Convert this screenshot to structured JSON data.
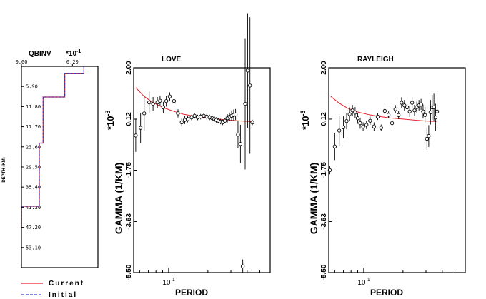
{
  "chart_data": [
    {
      "type": "line",
      "title": "QBINV",
      "multiplier": "*10",
      "multiplier_exp": "-1",
      "xlabel": "",
      "ylabel": "DEPTH (KM)",
      "xlim": [
        0.0,
        0.3
      ],
      "ylim": [
        0.0,
        59.0
      ],
      "x_reversed_y": true,
      "x_ticks": [
        "0.00",
        "0.20"
      ],
      "x_tick_values": [
        0.0,
        0.2
      ],
      "y_ticks": [
        "5.90",
        "11.80",
        "17.70",
        "23.60",
        "29.50",
        "35.40",
        "41.30",
        "47.20",
        "53.10"
      ],
      "y_tick_values": [
        5.9,
        11.8,
        17.7,
        23.6,
        29.5,
        35.4,
        41.3,
        47.2,
        53.1
      ],
      "series": [
        {
          "name": "Current",
          "color": "#e8202a",
          "depth": [
            0,
            2.0,
            2.0,
            9.0,
            9.0,
            22.5,
            22.5,
            41.0,
            41.0,
            47.0
          ],
          "qinv": [
            0.245,
            0.245,
            0.17,
            0.17,
            0.085,
            0.085,
            0.07,
            0.07,
            0.0,
            0.0
          ]
        },
        {
          "name": "Initial",
          "color": "#3a3acf",
          "depth": [
            0,
            2.0,
            2.0,
            9.0,
            9.0,
            22.5,
            22.5,
            41.0,
            41.0,
            47.0
          ],
          "qinv": [
            0.245,
            0.245,
            0.17,
            0.17,
            0.085,
            0.085,
            0.07,
            0.07,
            0.0,
            0.0
          ]
        }
      ],
      "legend": [
        "Current",
        "Initial"
      ]
    },
    {
      "type": "scatter",
      "title": "LOVE",
      "xlabel": "PERIOD",
      "ylabel": "GAMMA (1/KM)",
      "multiplier": "*10",
      "multiplier_exp": "-3",
      "x_scale": "log",
      "xlim": [
        5.4,
        60
      ],
      "ylim": [
        -5.5,
        2.0
      ],
      "x_ticks": [
        "10"
      ],
      "x_tick_values": [
        10
      ],
      "x_tick_exponent": "1",
      "y_ticks": [
        "2.00",
        "0.12",
        "-1.75",
        "-3.63",
        "-5.50"
      ],
      "y_tick_values": [
        2.0,
        0.12,
        -1.75,
        -3.63,
        -5.5
      ],
      "curve": {
        "color": "#e8202a",
        "period": [
          5.6,
          6.5,
          7.5,
          9.0,
          11,
          13,
          16,
          20,
          25,
          30,
          36,
          43
        ],
        "gamma": [
          1.27,
          0.95,
          0.74,
          0.55,
          0.4,
          0.3,
          0.22,
          0.16,
          0.11,
          0.08,
          0.05,
          0.03
        ]
      },
      "points": {
        "period": [
          5.6,
          6.1,
          6.5,
          7.1,
          7.6,
          8.2,
          8.6,
          9.1,
          9.6,
          10.2,
          11.0,
          11.8,
          12.6,
          13.3,
          14.0,
          15.0,
          15.8,
          16.7,
          17.6,
          18.6,
          19.6,
          20.6,
          21.6,
          22.4,
          23.2,
          24.1,
          25.0,
          25.9,
          27.0,
          28.2,
          29.3,
          30.4,
          31.5,
          32.6,
          34.0,
          35.5,
          37.0,
          38.6,
          40.3,
          42.0,
          43.8
        ],
        "gamma": [
          -0.48,
          -0.2,
          0.33,
          0.73,
          0.68,
          0.73,
          0.79,
          0.55,
          0.78,
          0.95,
          0.78,
          0.33,
          0.0,
          0.09,
          0.12,
          0.18,
          0.24,
          0.18,
          0.21,
          0.24,
          0.21,
          0.18,
          0.15,
          0.12,
          0.09,
          0.06,
          0.03,
          0.0,
          0.06,
          0.15,
          0.21,
          0.24,
          0.27,
          0.29,
          -0.45,
          -0.79,
          -5.27,
          0.68,
          1.9,
          1.35,
          0.0
        ],
        "err": [
          0.6,
          0.55,
          0.65,
          0.4,
          0.25,
          0.2,
          0.18,
          0.2,
          0.2,
          0.15,
          0.12,
          0.15,
          0.15,
          0.15,
          0.12,
          0.1,
          0.1,
          0.1,
          0.1,
          0.1,
          0.1,
          0.1,
          0.1,
          0.1,
          0.1,
          0.1,
          0.1,
          0.1,
          0.1,
          0.15,
          0.15,
          0.2,
          0.2,
          0.2,
          0.5,
          0.7,
          0.25,
          2.4,
          2.1,
          2.5,
          0.1
        ]
      }
    },
    {
      "type": "scatter",
      "title": "RAYLEIGH",
      "xlabel": "PERIOD",
      "ylabel": "GAMMA (1/KM)",
      "multiplier": "*10",
      "multiplier_exp": "-3",
      "x_scale": "log",
      "xlim": [
        5.4,
        60
      ],
      "ylim": [
        -5.5,
        2.0
      ],
      "x_ticks": [
        "10"
      ],
      "x_tick_values": [
        10
      ],
      "x_tick_exponent": "1",
      "y_ticks": [
        "2.00",
        "0.12",
        "-1.75",
        "-3.63",
        "-5.50"
      ],
      "y_tick_values": [
        2.0,
        0.12,
        -1.75,
        -3.63,
        -5.5
      ],
      "curve": {
        "color": "#e8202a",
        "period": [
          5.6,
          6.5,
          7.5,
          9.0,
          11,
          13,
          16,
          20,
          25,
          30,
          36
        ],
        "gamma": [
          0.95,
          0.7,
          0.52,
          0.38,
          0.28,
          0.22,
          0.16,
          0.12,
          0.08,
          0.05,
          0.03
        ]
      },
      "points": {
        "period": [
          5.5,
          6.0,
          6.5,
          7.0,
          7.4,
          7.8,
          8.2,
          8.6,
          9.0,
          9.4,
          9.9,
          10.5,
          11.2,
          12.0,
          12.8,
          13.6,
          14.5,
          15.5,
          16.5,
          17.5,
          18.5,
          19.5,
          20.5,
          21.5,
          22.5,
          23.5,
          24.5,
          25.5,
          26.5,
          27.5,
          28.5,
          29.5,
          30.5,
          31.5,
          32.5,
          33.5,
          34.5,
          35.5,
          36.5
        ],
        "gamma": [
          -1.75,
          -0.88,
          -0.3,
          -0.18,
          0.05,
          0.3,
          0.44,
          0.36,
          0.15,
          -0.03,
          -0.15,
          -0.09,
          0.06,
          -0.15,
          0.21,
          -0.2,
          0.42,
          0.28,
          -0.03,
          0.48,
          0.27,
          0.72,
          0.62,
          0.55,
          0.4,
          0.72,
          0.44,
          0.56,
          0.62,
          0.66,
          0.4,
          0.27,
          -0.6,
          -0.5,
          0.37,
          0.55,
          0.55,
          0.18,
          0.4
        ],
        "err": [
          0.15,
          0.5,
          0.55,
          0.4,
          0.3,
          0.25,
          0.2,
          0.2,
          0.2,
          0.2,
          0.15,
          0.15,
          0.15,
          0.15,
          0.12,
          0.12,
          0.12,
          0.12,
          0.12,
          0.15,
          0.15,
          0.2,
          0.2,
          0.2,
          0.2,
          0.2,
          0.2,
          0.2,
          0.2,
          0.2,
          0.25,
          0.3,
          0.4,
          0.4,
          0.45,
          0.45,
          0.5,
          0.5,
          0.6
        ]
      }
    }
  ]
}
